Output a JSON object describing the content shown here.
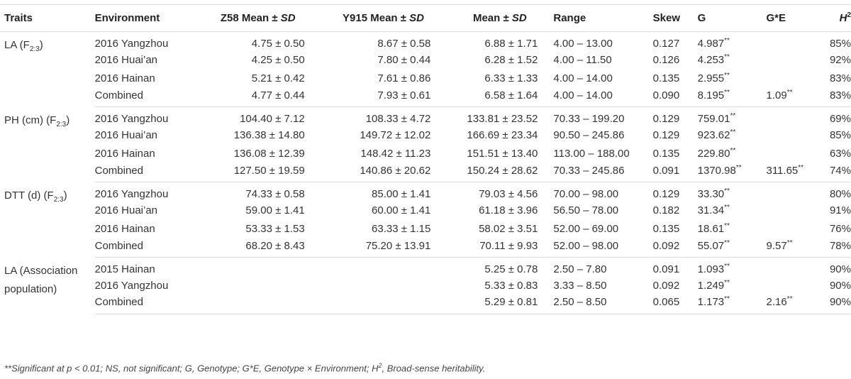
{
  "headers": {
    "traits": "Traits",
    "environment": "Environment",
    "z58_prefix": "Z58 Mean ±",
    "y915_prefix": "Y915 Mean ±",
    "mean_prefix": "Mean ±",
    "sd": "SD",
    "range": "Range",
    "skew": "Skew",
    "g": "G",
    "ge": "G*E",
    "h_base": "H",
    "h_sup": "2"
  },
  "groups": [
    {
      "trait_main": "LA (F",
      "trait_sub": "2:3",
      "trait_end": ")",
      "rows": [
        {
          "env": "2016 Yangzhou",
          "z58": "4.75 ± 0.50",
          "y915": "8.67 ± 0.58",
          "mean": "6.88 ± 1.71",
          "range": "4.00 – 13.00",
          "skew": "0.127",
          "g": "4.987",
          "g_sig": "**",
          "ge": "",
          "ge_sig": "",
          "h2": "85%"
        },
        {
          "env": "2016 Huai’an",
          "z58": "4.25 ± 0.50",
          "y915": "7.80 ± 0.44",
          "mean": "6.28 ± 1.52",
          "range": "4.00 – 11.50",
          "skew": "0.126",
          "g": "4.253",
          "g_sig": "**",
          "ge": "",
          "ge_sig": "",
          "h2": "92%"
        },
        {
          "env": "2016 Hainan",
          "z58": "5.21 ± 0.42",
          "y915": "7.61 ± 0.86",
          "mean": "6.33 ± 1.33",
          "range": "4.00 – 14.00",
          "skew": "0.135",
          "g": "2.955",
          "g_sig": "**",
          "ge": "",
          "ge_sig": "",
          "h2": "83%"
        },
        {
          "env": "Combined",
          "z58": "4.77 ± 0.44",
          "y915": "7.93 ± 0.61",
          "mean": "6.58 ± 1.64",
          "range": "4.00 – 14.00",
          "skew": "0.090",
          "g": "8.195",
          "g_sig": "**",
          "ge": "1.09",
          "ge_sig": "**",
          "h2": "83%"
        }
      ]
    },
    {
      "trait_main": "PH (cm) (F",
      "trait_sub": "2:3",
      "trait_end": ")",
      "rows": [
        {
          "env": "2016 Yangzhou",
          "z58": "104.40 ± 7.12",
          "y915": "108.33 ± 4.72",
          "mean": "133.81 ± 23.52",
          "range": "70.33 – 199.20",
          "skew": "0.129",
          "g": "759.01",
          "g_sig": "**",
          "ge": "",
          "ge_sig": "",
          "h2": "69%"
        },
        {
          "env": "2016 Huai’an",
          "z58": "136.38 ± 14.80",
          "y915": "149.72 ± 12.02",
          "mean": "166.69 ± 23.34",
          "range": "90.50 – 245.86",
          "skew": "0.129",
          "g": "923.62",
          "g_sig": "**",
          "ge": "",
          "ge_sig": "",
          "h2": "85%"
        },
        {
          "env": "2016 Hainan",
          "z58": "136.08 ± 12.39",
          "y915": "148.42 ± 11.23",
          "mean": "151.51 ± 13.40",
          "range": "113.00 – 188.00",
          "skew": "0.135",
          "g": "229.80",
          "g_sig": "**",
          "ge": "",
          "ge_sig": "",
          "h2": "63%"
        },
        {
          "env": "Combined",
          "z58": "127.50 ± 19.59",
          "y915": "140.86 ± 20.62",
          "mean": "150.24 ± 28.62",
          "range": "70.33 – 245.86",
          "skew": "0.091",
          "g": "1370.98",
          "g_sig": "**",
          "ge": "311.65",
          "ge_sig": "**",
          "h2": "74%"
        }
      ]
    },
    {
      "trait_main": "DTT (d) (F",
      "trait_sub": "2:3",
      "trait_end": ")",
      "rows": [
        {
          "env": "2016 Yangzhou",
          "z58": "74.33 ± 0.58",
          "y915": "85.00 ± 1.41",
          "mean": "79.03 ± 4.56",
          "range": "70.00 – 98.00",
          "skew": "0.129",
          "g": "33.30",
          "g_sig": "**",
          "ge": "",
          "ge_sig": "",
          "h2": "80%"
        },
        {
          "env": "2016 Huai’an",
          "z58": "59.00 ± 1.41",
          "y915": "60.00 ± 1.41",
          "mean": "61.18 ± 3.96",
          "range": "56.50 – 78.00",
          "skew": "0.182",
          "g": "31.34",
          "g_sig": "**",
          "ge": "",
          "ge_sig": "",
          "h2": "91%"
        },
        {
          "env": "2016 Hainan",
          "z58": "53.33 ± 1.53",
          "y915": "63.33 ± 1.15",
          "mean": "58.02 ± 3.51",
          "range": "52.00 – 69.00",
          "skew": "0.135",
          "g": "18.61",
          "g_sig": "**",
          "ge": "",
          "ge_sig": "",
          "h2": "76%"
        },
        {
          "env": "Combined",
          "z58": "68.20 ± 8.43",
          "y915": "75.20 ± 13.91",
          "mean": "70.11 ± 9.93",
          "range": "52.00 – 98.00",
          "skew": "0.092",
          "g": "55.07",
          "g_sig": "**",
          "ge": "9.57",
          "ge_sig": "**",
          "h2": "78%"
        }
      ]
    },
    {
      "trait_main": "LA (Association population)",
      "trait_sub": "",
      "trait_end": "",
      "rows": [
        {
          "env": "2015 Hainan",
          "z58": "",
          "y915": "",
          "mean": "5.25 ± 0.78",
          "range": "2.50 – 7.80",
          "skew": "0.091",
          "g": "1.093",
          "g_sig": "**",
          "ge": "",
          "ge_sig": "",
          "h2": "90%"
        },
        {
          "env": "2016 Yangzhou",
          "z58": "",
          "y915": "",
          "mean": "5.33 ± 0.83",
          "range": "3.33 – 8.50",
          "skew": "0.092",
          "g": "1.249",
          "g_sig": "**",
          "ge": "",
          "ge_sig": "",
          "h2": "90%"
        },
        {
          "env": "Combined",
          "z58": "",
          "y915": "",
          "mean": "5.29 ± 0.81",
          "range": "2.50 – 8.50",
          "skew": "0.065",
          "g": "1.173",
          "g_sig": "**",
          "ge": "2.16",
          "ge_sig": "**",
          "h2": "90%"
        }
      ]
    }
  ],
  "footnote": {
    "part1": "**Significant at p < 0.01; NS, not significant; G, Genotype; G*E, Genotype × Environment; H",
    "sup": "2",
    "part2": ", Broad-sense heritability."
  }
}
